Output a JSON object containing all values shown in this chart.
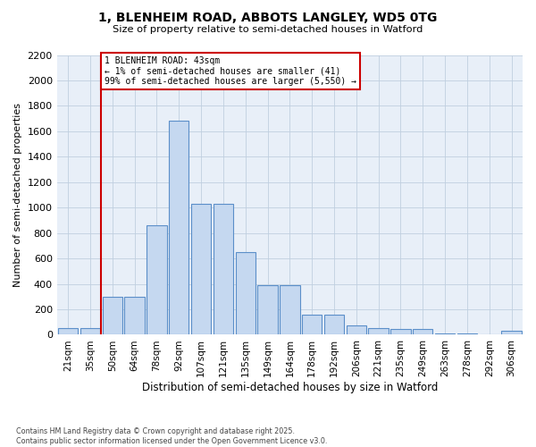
{
  "title_line1": "1, BLENHEIM ROAD, ABBOTS LANGLEY, WD5 0TG",
  "title_line2": "Size of property relative to semi-detached houses in Watford",
  "xlabel": "Distribution of semi-detached houses by size in Watford",
  "ylabel": "Number of semi-detached properties",
  "categories": [
    "21sqm",
    "35sqm",
    "50sqm",
    "64sqm",
    "78sqm",
    "92sqm",
    "107sqm",
    "121sqm",
    "135sqm",
    "149sqm",
    "164sqm",
    "178sqm",
    "192sqm",
    "206sqm",
    "221sqm",
    "235sqm",
    "249sqm",
    "263sqm",
    "278sqm",
    "292sqm",
    "306sqm"
  ],
  "values": [
    50,
    50,
    300,
    300,
    860,
    1680,
    1030,
    1030,
    650,
    390,
    390,
    160,
    160,
    75,
    55,
    45,
    45,
    10,
    10,
    5,
    30
  ],
  "bar_color": "#c5d8f0",
  "bar_edge_color": "#5b8fc9",
  "vline_color": "#cc0000",
  "vline_x": 1.5,
  "annotation_text": "1 BLENHEIM ROAD: 43sqm\n← 1% of semi-detached houses are smaller (41)\n99% of semi-detached houses are larger (5,550) →",
  "annotation_box_edgecolor": "#cc0000",
  "ylim_max": 2200,
  "yticks": [
    0,
    200,
    400,
    600,
    800,
    1000,
    1200,
    1400,
    1600,
    1800,
    2000,
    2200
  ],
  "footnote": "Contains HM Land Registry data © Crown copyright and database right 2025.\nContains public sector information licensed under the Open Government Licence v3.0.",
  "bg_color": "#ffffff",
  "plot_bg_color": "#e8eff8",
  "grid_color": "#c0cfe0"
}
